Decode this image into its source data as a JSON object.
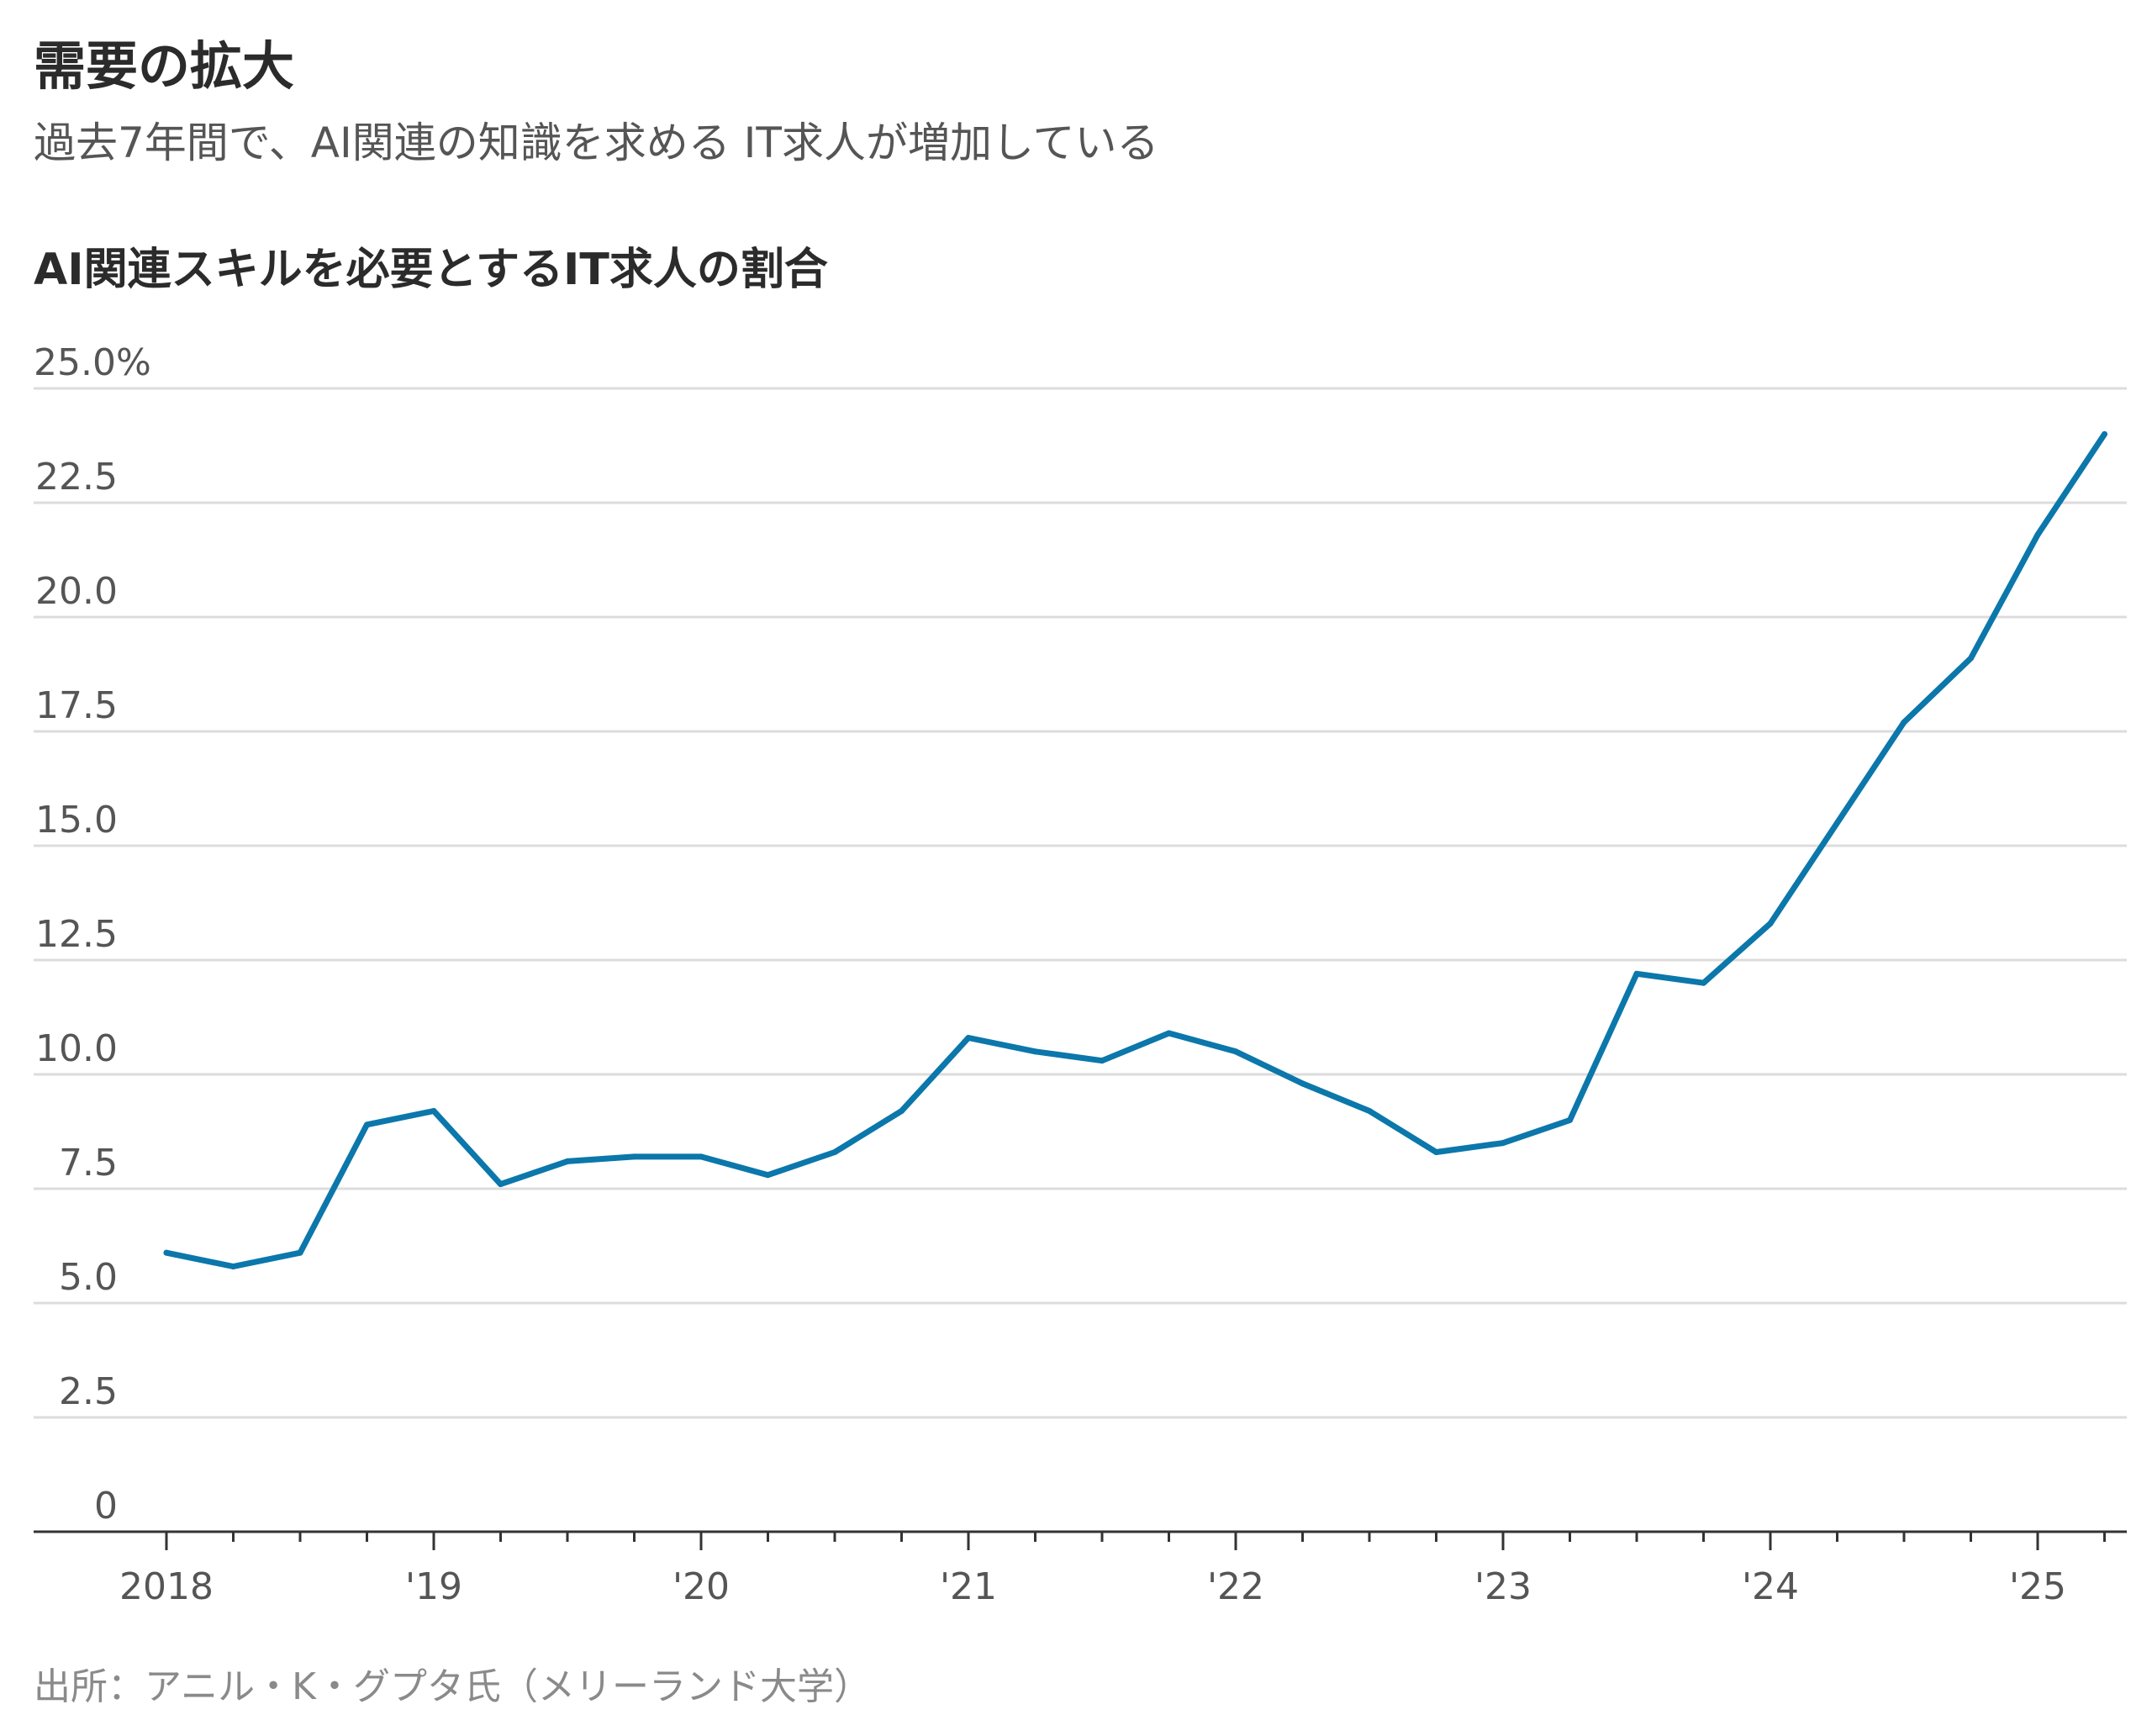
{
  "title": "需要の拡大",
  "subtitle": "過去7年間で、AI関連の知識を求める IT求人が増加している",
  "chart_title": "AI関連スキルを必要とするIT求人の割合",
  "source": "出所：アニル・K・グプタ氏（メリーランド大学）",
  "colors": {
    "line": "#0b77ab",
    "grid": "#dcdcdc",
    "axis": "#333333"
  },
  "chart_data": {
    "type": "line",
    "title": "AI関連スキルを必要とするIT求人の割合",
    "xlabel": "",
    "ylabel": "",
    "ylim": [
      0,
      25
    ],
    "xlim": [
      2018,
      2025.5
    ],
    "grid": true,
    "y_ticks": [
      {
        "value": 0,
        "label": "0"
      },
      {
        "value": 2.5,
        "label": "2.5"
      },
      {
        "value": 5,
        "label": "5.0"
      },
      {
        "value": 7.5,
        "label": "7.5"
      },
      {
        "value": 10,
        "label": "10.0"
      },
      {
        "value": 12.5,
        "label": "12.5"
      },
      {
        "value": 15,
        "label": "15.0"
      },
      {
        "value": 17.5,
        "label": "17.5"
      },
      {
        "value": 20,
        "label": "20.0"
      },
      {
        "value": 22.5,
        "label": "22.5"
      },
      {
        "value": 25,
        "label": "25.0%"
      }
    ],
    "x_ticks": [
      {
        "value": 2018,
        "label": "2018"
      },
      {
        "value": 2019,
        "label": "'19"
      },
      {
        "value": 2020,
        "label": "'20"
      },
      {
        "value": 2021,
        "label": "'21"
      },
      {
        "value": 2022,
        "label": "'22"
      },
      {
        "value": 2023,
        "label": "'23"
      },
      {
        "value": 2024,
        "label": "'24"
      },
      {
        "value": 2025,
        "label": "'25"
      }
    ],
    "series": [
      {
        "x": [
          2018.0,
          2018.25,
          2018.5,
          2018.75,
          2019.0,
          2019.25,
          2019.5,
          2019.75,
          2020.0,
          2020.25,
          2020.5,
          2020.75,
          2021.0,
          2021.25,
          2021.5,
          2021.75,
          2022.0,
          2022.25,
          2022.5,
          2022.75,
          2023.0,
          2023.25,
          2023.5,
          2023.75,
          2024.0,
          2024.25,
          2024.5,
          2024.75,
          2025.0,
          2025.25
        ],
        "values": [
          6.1,
          5.8,
          6.1,
          8.9,
          9.2,
          7.6,
          8.1,
          8.2,
          8.2,
          7.8,
          8.3,
          9.2,
          10.8,
          10.5,
          10.3,
          10.9,
          10.5,
          9.8,
          9.2,
          8.3,
          8.5,
          9.0,
          12.2,
          12.0,
          13.3,
          15.5,
          17.7,
          19.1,
          21.8,
          24.0
        ]
      }
    ]
  }
}
